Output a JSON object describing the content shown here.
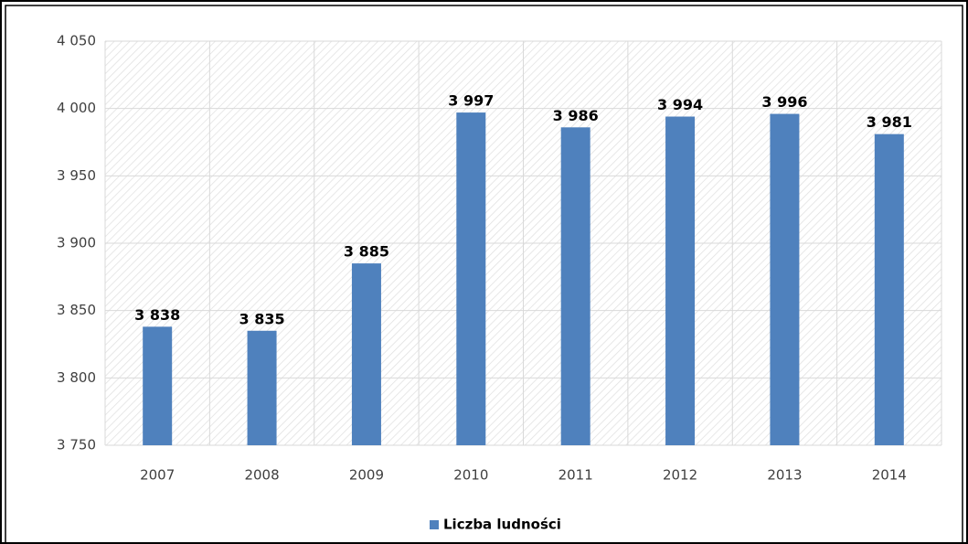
{
  "chart_data": {
    "type": "bar",
    "categories": [
      "2007",
      "2008",
      "2009",
      "2010",
      "2011",
      "2012",
      "2013",
      "2014"
    ],
    "series": [
      {
        "name": "Liczba ludności",
        "color": "#4f81bd",
        "values": [
          3838,
          3835,
          3885,
          3997,
          3986,
          3994,
          3996,
          3981
        ],
        "value_labels": [
          "3 838",
          "3 835",
          "3 885",
          "3 997",
          "3 986",
          "3 994",
          "3 996",
          "3 981"
        ]
      }
    ],
    "ylim": [
      3750,
      4050
    ],
    "yticks": [
      {
        "value": 3750,
        "label": "3 750"
      },
      {
        "value": 3800,
        "label": "3 800"
      },
      {
        "value": 3850,
        "label": "3 850"
      },
      {
        "value": 3900,
        "label": "3 900"
      },
      {
        "value": 3950,
        "label": "3 950"
      },
      {
        "value": 4000,
        "label": "4 000"
      },
      {
        "value": 4050,
        "label": "4 050"
      }
    ],
    "grid": true,
    "legend": "bottom"
  }
}
